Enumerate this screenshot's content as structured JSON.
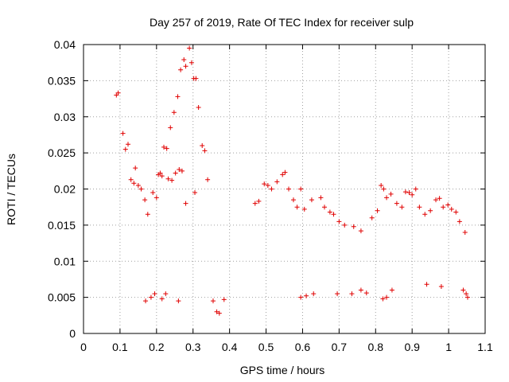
{
  "chart_data": {
    "type": "scatter",
    "title": "Day 257 of 2019, Rate Of TEC Index for receiver sulp",
    "xlabel": "GPS time / hours",
    "ylabel": "ROTI / TECUs",
    "xlim": [
      0,
      1.1
    ],
    "ylim": [
      0,
      0.04
    ],
    "x_ticks": [
      "0",
      "0.1",
      "0.2",
      "0.3",
      "0.4",
      "0.5",
      "0.6",
      "0.7",
      "0.8",
      "0.9",
      "1",
      "1.1"
    ],
    "y_ticks": [
      "0",
      "0.005",
      "0.01",
      "0.015",
      "0.02",
      "0.025",
      "0.03",
      "0.035",
      "0.04"
    ],
    "grid": true,
    "marker": "plus",
    "color": "#e00000",
    "series": [
      {
        "points": [
          [
            0.09,
            0.033
          ],
          [
            0.095,
            0.0333
          ],
          [
            0.108,
            0.0277
          ],
          [
            0.115,
            0.0255
          ],
          [
            0.122,
            0.0262
          ],
          [
            0.13,
            0.0213
          ],
          [
            0.138,
            0.0208
          ],
          [
            0.142,
            0.0229
          ],
          [
            0.15,
            0.0205
          ],
          [
            0.158,
            0.02
          ],
          [
            0.168,
            0.0185
          ],
          [
            0.176,
            0.0165
          ],
          [
            0.19,
            0.0195
          ],
          [
            0.2,
            0.0188
          ],
          [
            0.205,
            0.022
          ],
          [
            0.21,
            0.0222
          ],
          [
            0.215,
            0.0218
          ],
          [
            0.22,
            0.0258
          ],
          [
            0.228,
            0.0256
          ],
          [
            0.232,
            0.0214
          ],
          [
            0.238,
            0.0285
          ],
          [
            0.242,
            0.0212
          ],
          [
            0.248,
            0.0306
          ],
          [
            0.252,
            0.0222
          ],
          [
            0.258,
            0.0328
          ],
          [
            0.262,
            0.0227
          ],
          [
            0.266,
            0.0365
          ],
          [
            0.27,
            0.0225
          ],
          [
            0.275,
            0.0379
          ],
          [
            0.28,
            0.037
          ],
          [
            0.29,
            0.0395
          ],
          [
            0.296,
            0.0375
          ],
          [
            0.302,
            0.0353
          ],
          [
            0.308,
            0.0353
          ],
          [
            0.315,
            0.0313
          ],
          [
            0.325,
            0.026
          ],
          [
            0.332,
            0.0253
          ],
          [
            0.34,
            0.0213
          ],
          [
            0.305,
            0.0195
          ],
          [
            0.28,
            0.018
          ],
          [
            0.47,
            0.018
          ],
          [
            0.48,
            0.0183
          ],
          [
            0.495,
            0.0207
          ],
          [
            0.505,
            0.0205
          ],
          [
            0.515,
            0.02
          ],
          [
            0.53,
            0.021
          ],
          [
            0.545,
            0.022
          ],
          [
            0.552,
            0.0223
          ],
          [
            0.562,
            0.02
          ],
          [
            0.575,
            0.0185
          ],
          [
            0.585,
            0.0175
          ],
          [
            0.595,
            0.02
          ],
          [
            0.605,
            0.0172
          ],
          [
            0.625,
            0.0185
          ],
          [
            0.65,
            0.0188
          ],
          [
            0.66,
            0.0175
          ],
          [
            0.675,
            0.0168
          ],
          [
            0.685,
            0.0165
          ],
          [
            0.7,
            0.0155
          ],
          [
            0.715,
            0.015
          ],
          [
            0.74,
            0.0148
          ],
          [
            0.76,
            0.0142
          ],
          [
            0.79,
            0.016
          ],
          [
            0.805,
            0.017
          ],
          [
            0.815,
            0.0205
          ],
          [
            0.822,
            0.02
          ],
          [
            0.83,
            0.0188
          ],
          [
            0.842,
            0.0193
          ],
          [
            0.858,
            0.018
          ],
          [
            0.872,
            0.0175
          ],
          [
            0.882,
            0.0196
          ],
          [
            0.892,
            0.0195
          ],
          [
            0.9,
            0.0192
          ],
          [
            0.91,
            0.02
          ],
          [
            0.92,
            0.0175
          ],
          [
            0.935,
            0.0165
          ],
          [
            0.95,
            0.017
          ],
          [
            0.965,
            0.0185
          ],
          [
            0.975,
            0.0187
          ],
          [
            0.985,
            0.0175
          ],
          [
            0.998,
            0.0178
          ],
          [
            1.008,
            0.0172
          ],
          [
            1.02,
            0.0168
          ],
          [
            1.03,
            0.0155
          ],
          [
            1.045,
            0.014
          ],
          [
            0.26,
            0.0045
          ],
          [
            0.355,
            0.0045
          ],
          [
            0.365,
            0.003
          ],
          [
            0.372,
            0.0028
          ],
          [
            0.385,
            0.0047
          ],
          [
            0.17,
            0.0045
          ],
          [
            0.185,
            0.005
          ],
          [
            0.195,
            0.0055
          ],
          [
            0.215,
            0.0048
          ],
          [
            0.225,
            0.0055
          ],
          [
            0.595,
            0.005
          ],
          [
            0.61,
            0.0052
          ],
          [
            0.63,
            0.0055
          ],
          [
            0.695,
            0.0055
          ],
          [
            0.735,
            0.0055
          ],
          [
            0.76,
            0.006
          ],
          [
            0.775,
            0.0056
          ],
          [
            0.82,
            0.0048
          ],
          [
            0.83,
            0.005
          ],
          [
            0.845,
            0.006
          ],
          [
            1.04,
            0.006
          ],
          [
            1.048,
            0.0055
          ],
          [
            1.052,
            0.005
          ],
          [
            0.98,
            0.0065
          ],
          [
            0.94,
            0.0068
          ]
        ]
      }
    ]
  }
}
